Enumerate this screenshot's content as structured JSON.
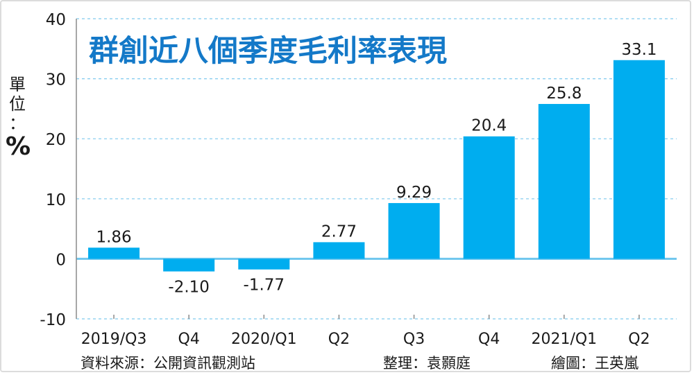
{
  "chart_data": {
    "type": "bar",
    "title": "群創近八個季度毛利率表現",
    "unit": {
      "chars": [
        "單",
        "位",
        "："
      ],
      "symbol": "%"
    },
    "categories": [
      "2019/Q3",
      "Q4",
      "2020/Q1",
      "Q2",
      "Q3",
      "Q4",
      "2021/Q1",
      "Q2"
    ],
    "values": [
      1.86,
      -2.1,
      -1.77,
      2.77,
      9.29,
      20.4,
      25.8,
      33.1
    ],
    "value_labels": [
      "1.86",
      "-2.10",
      "-1.77",
      "2.77",
      "9.29",
      "20.4",
      "25.8",
      "33.1"
    ],
    "ylim": [
      -10,
      40
    ],
    "yticks": [
      "-10",
      "0",
      "10",
      "20",
      "30",
      "40"
    ],
    "grid": true,
    "colors": {
      "bar": "#00adef",
      "title": "#1479c8",
      "grid": "#7fc9ee",
      "zero_line": "#6ec6ee"
    }
  },
  "footer": {
    "source": "資料來源：公開資訊觀測站",
    "editor": "整理：袁顥庭",
    "illustrator": "繪圖：王英嵐"
  }
}
